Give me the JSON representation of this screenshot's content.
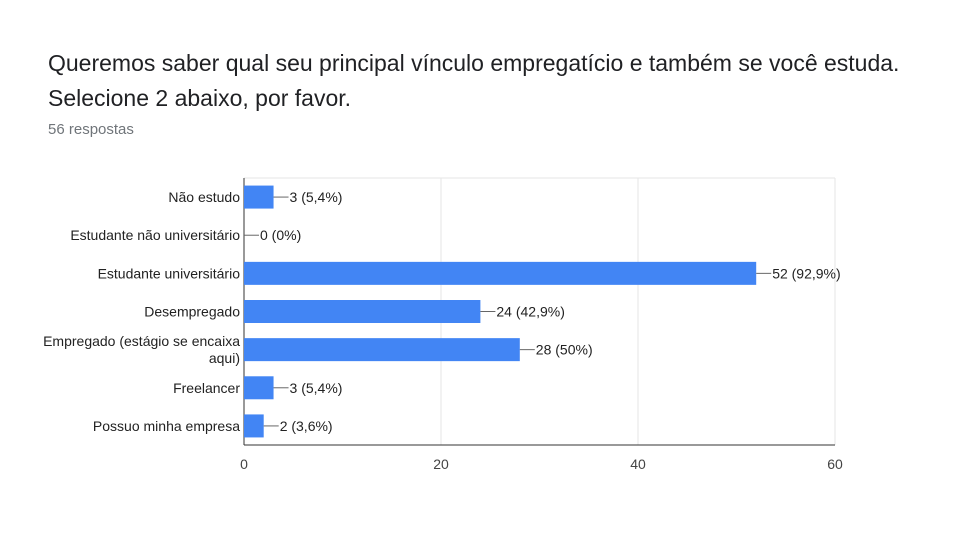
{
  "header": {
    "title": "Queremos saber qual seu principal vínculo empregatício e também se você estuda. Selecione 2 abaixo, por favor.",
    "responses": "56 respostas"
  },
  "chart_data": {
    "type": "bar",
    "orientation": "horizontal",
    "categories": [
      [
        "Não estudo"
      ],
      [
        "Estudante não universitário"
      ],
      [
        "Estudante universitário"
      ],
      [
        "Desempregado"
      ],
      [
        "Empregado (estágio se encaixa",
        "aqui)"
      ],
      [
        "Freelancer"
      ],
      [
        "Possuo minha empresa"
      ]
    ],
    "values": [
      3,
      0,
      52,
      24,
      28,
      3,
      2
    ],
    "data_labels": [
      "3 (5,4%)",
      "0 (0%)",
      "52 (92,9%)",
      "24 (42,9%)",
      "28 (50%)",
      "3 (5,4%)",
      "2 (3,6%)"
    ],
    "xlim": [
      0,
      60
    ],
    "xticks": [
      0,
      20,
      40,
      60
    ],
    "grid": true,
    "bar_color": "#4285f4"
  }
}
